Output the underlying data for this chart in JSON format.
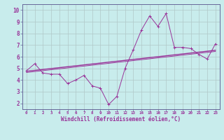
{
  "xlabel": "Windchill (Refroidissement éolien,°C)",
  "bg_color": "#c8ecec",
  "grid_color": "#b0c8c8",
  "line_color": "#993399",
  "spine_color": "#666699",
  "xlim": [
    -0.5,
    23.5
  ],
  "ylim": [
    1.5,
    10.5
  ],
  "yticks": [
    2,
    3,
    4,
    5,
    6,
    7,
    8,
    9,
    10
  ],
  "xticks": [
    0,
    1,
    2,
    3,
    4,
    5,
    6,
    7,
    8,
    9,
    10,
    11,
    12,
    13,
    14,
    15,
    16,
    17,
    18,
    19,
    20,
    21,
    22,
    23
  ],
  "data_x": [
    0,
    1,
    2,
    3,
    4,
    5,
    6,
    7,
    8,
    9,
    10,
    11,
    12,
    13,
    14,
    15,
    16,
    17,
    18,
    19,
    20,
    21,
    22,
    23
  ],
  "data_y": [
    4.8,
    5.4,
    4.6,
    4.5,
    4.5,
    3.7,
    4.0,
    4.4,
    3.5,
    3.3,
    1.9,
    2.6,
    5.0,
    6.6,
    8.3,
    9.5,
    8.6,
    9.7,
    6.8,
    6.8,
    6.7,
    6.2,
    5.8,
    7.1
  ],
  "trend_y_start": 4.75,
  "trend_y_end": 6.55,
  "trend2_y_start": 4.65,
  "trend2_y_end": 6.45
}
